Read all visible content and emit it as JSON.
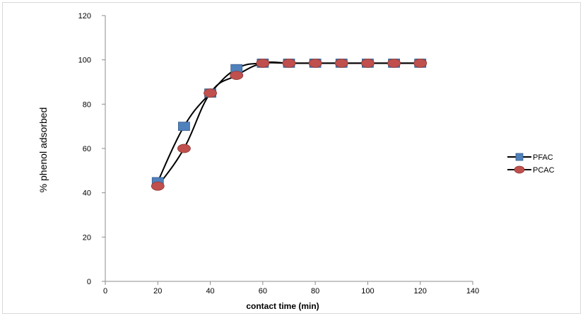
{
  "chart_data": {
    "type": "line",
    "xlabel": "contact time (min)",
    "ylabel": "% phenol adsorbed",
    "xlim": [
      0,
      140
    ],
    "ylim": [
      0,
      120
    ],
    "x_ticks": [
      0,
      20,
      40,
      60,
      80,
      100,
      120,
      140
    ],
    "y_ticks": [
      0,
      20,
      40,
      60,
      80,
      100,
      120
    ],
    "grid": false,
    "legend_position": "right",
    "x": [
      20,
      30,
      40,
      50,
      60,
      70,
      80,
      90,
      100,
      110,
      120
    ],
    "series": [
      {
        "name": "PFAC",
        "marker": "square",
        "marker_color": "#4f81bd",
        "line_color": "#000000",
        "values": [
          45,
          70,
          85,
          96,
          98.5,
          98.5,
          98.5,
          98.5,
          98.5,
          98.5,
          98.5
        ]
      },
      {
        "name": "PCAC",
        "marker": "circle",
        "marker_color": "#c0504d",
        "line_color": "#000000",
        "values": [
          43,
          60,
          85,
          93,
          98.5,
          98.5,
          98.5,
          98.5,
          98.5,
          98.5,
          98.5
        ]
      }
    ]
  }
}
